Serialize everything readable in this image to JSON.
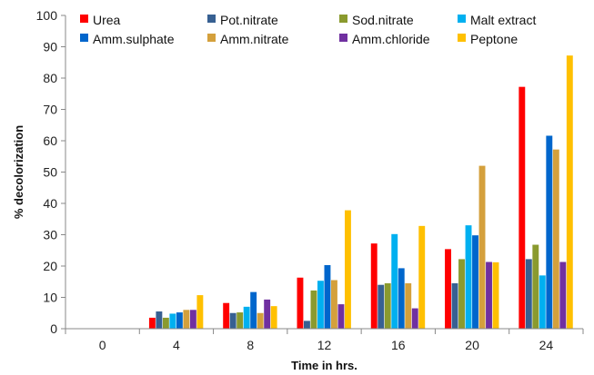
{
  "chart_data": {
    "type": "bar",
    "xlabel": "Time in hrs.",
    "ylabel": "% decolorization",
    "ylim": [
      0,
      100
    ],
    "yticks": [
      0,
      10,
      20,
      30,
      40,
      50,
      60,
      70,
      80,
      90,
      100
    ],
    "categories": [
      "0",
      "4",
      "8",
      "12",
      "16",
      "20",
      "24"
    ],
    "grid": false,
    "legend_position": "top",
    "series": [
      {
        "name": "Urea",
        "color": "#ff0000",
        "values": [
          0,
          3.5,
          8.2,
          16.3,
          27.2,
          25.4,
          77.2
        ]
      },
      {
        "name": "Pot.nitrate",
        "color": "#376092",
        "values": [
          0,
          5.5,
          5.0,
          2.5,
          14.0,
          14.5,
          22.2
        ]
      },
      {
        "name": "Sod.nitrate",
        "color": "#8a9a2e",
        "values": [
          0,
          3.5,
          5.2,
          12.2,
          14.5,
          22.2,
          26.8
        ]
      },
      {
        "name": "Malt extract",
        "color": "#00b0f0",
        "values": [
          0,
          4.8,
          7.0,
          15.3,
          30.2,
          33.0,
          17.0
        ]
      },
      {
        "name": "Amm.sulphate",
        "color": "#0066cc",
        "values": [
          0,
          5.2,
          11.7,
          20.3,
          19.3,
          29.8,
          61.6
        ]
      },
      {
        "name": "Amm.nitrate",
        "color": "#d4a03c",
        "values": [
          0,
          6.0,
          5.0,
          15.5,
          14.5,
          52.0,
          57.2
        ]
      },
      {
        "name": "Amm.chloride",
        "color": "#7030a0",
        "values": [
          0,
          6.0,
          9.3,
          7.8,
          6.5,
          21.3,
          21.3
        ]
      },
      {
        "name": "Peptone",
        "color": "#ffc000",
        "values": [
          0,
          10.7,
          7.2,
          37.8,
          32.8,
          21.2,
          87.2
        ]
      }
    ]
  }
}
